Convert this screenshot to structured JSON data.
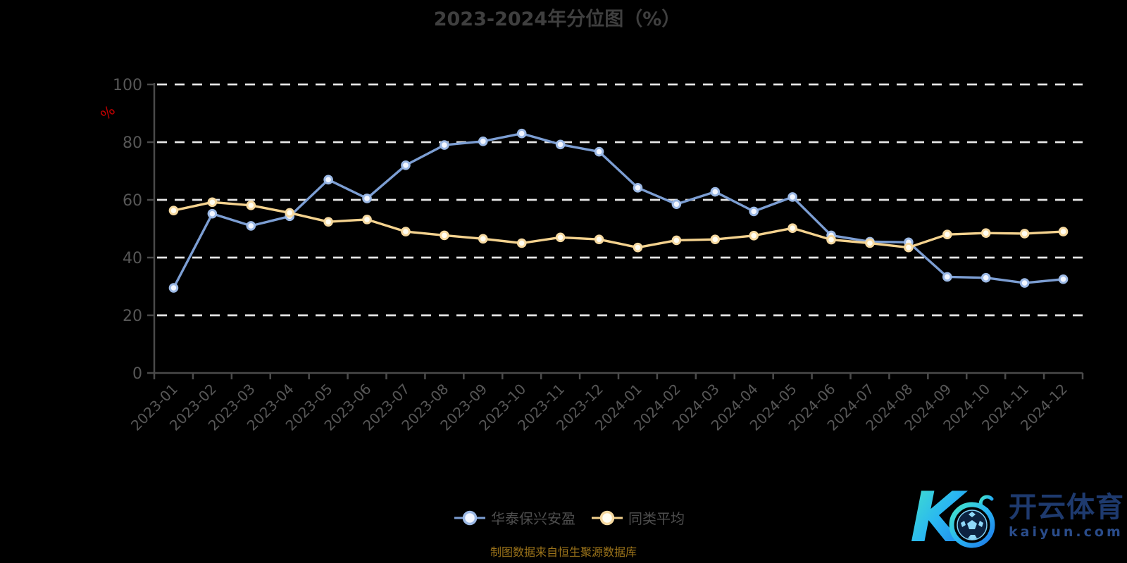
{
  "title": "2023-2024年分位图（%）",
  "subtitle": "制图数据来自恒生聚源数据库",
  "colors": {
    "background": "#000000",
    "title": "#3f3f3f",
    "axis": "#4a4a4a",
    "labels": "#575757",
    "grid": "#e6e6e6",
    "y_axis_name": "#c40000",
    "subtitle": "#9b731a",
    "legend_text": "#4e4e4e"
  },
  "chart_data": {
    "type": "line",
    "title": "2023-2024年分位图（%）",
    "xlabel": "",
    "ylabel": "%",
    "ylim": [
      0,
      100
    ],
    "y_ticks": [
      0,
      20,
      40,
      60,
      80,
      100
    ],
    "grid": "horizontal-dashed-white",
    "legend_position": "bottom-center",
    "categories": [
      "2023-01",
      "2023-02",
      "2023-03",
      "2023-04",
      "2023-05",
      "2023-06",
      "2023-07",
      "2023-08",
      "2023-09",
      "2023-10",
      "2023-11",
      "2023-12",
      "2024-01",
      "2024-02",
      "2024-03",
      "2024-04",
      "2024-05",
      "2024-06",
      "2024-07",
      "2024-08",
      "2024-09",
      "2024-10",
      "2024-11",
      "2024-12"
    ],
    "series": [
      {
        "name": "华泰保兴安盈",
        "line_color": "#7c9ed3",
        "marker_ring": "#9cb9e5",
        "marker_fill": "#f2f6ff",
        "values": [
          29.5,
          55.2,
          51,
          54.3,
          67,
          60.5,
          72,
          79,
          80.3,
          83,
          79.2,
          76.7,
          64.2,
          58.5,
          62.8,
          56,
          61,
          47.7,
          45.5,
          45.3,
          33.3,
          33,
          31.2,
          32.5
        ]
      },
      {
        "name": "同类平均",
        "line_color": "#f4d28e",
        "marker_ring": "#f6d9a0",
        "marker_fill": "#fffdf2",
        "values": [
          56.3,
          59.2,
          58.1,
          55.5,
          52.4,
          53.2,
          49,
          47.7,
          46.5,
          45,
          47,
          46.3,
          43.5,
          46,
          46.3,
          47.6,
          50.2,
          46.2,
          45,
          43.5,
          48,
          48.5,
          48.3,
          49
        ]
      }
    ]
  },
  "watermark": {
    "title": "开云体育",
    "domain": "kaiyun.com",
    "logo": "kaiyun-k-soccer-logo",
    "gradient": [
      "#45e6c6",
      "#29b6f2",
      "#1e78e8"
    ],
    "ball_color": "#0c2240",
    "ball_pattern": "#8fd8f8"
  }
}
